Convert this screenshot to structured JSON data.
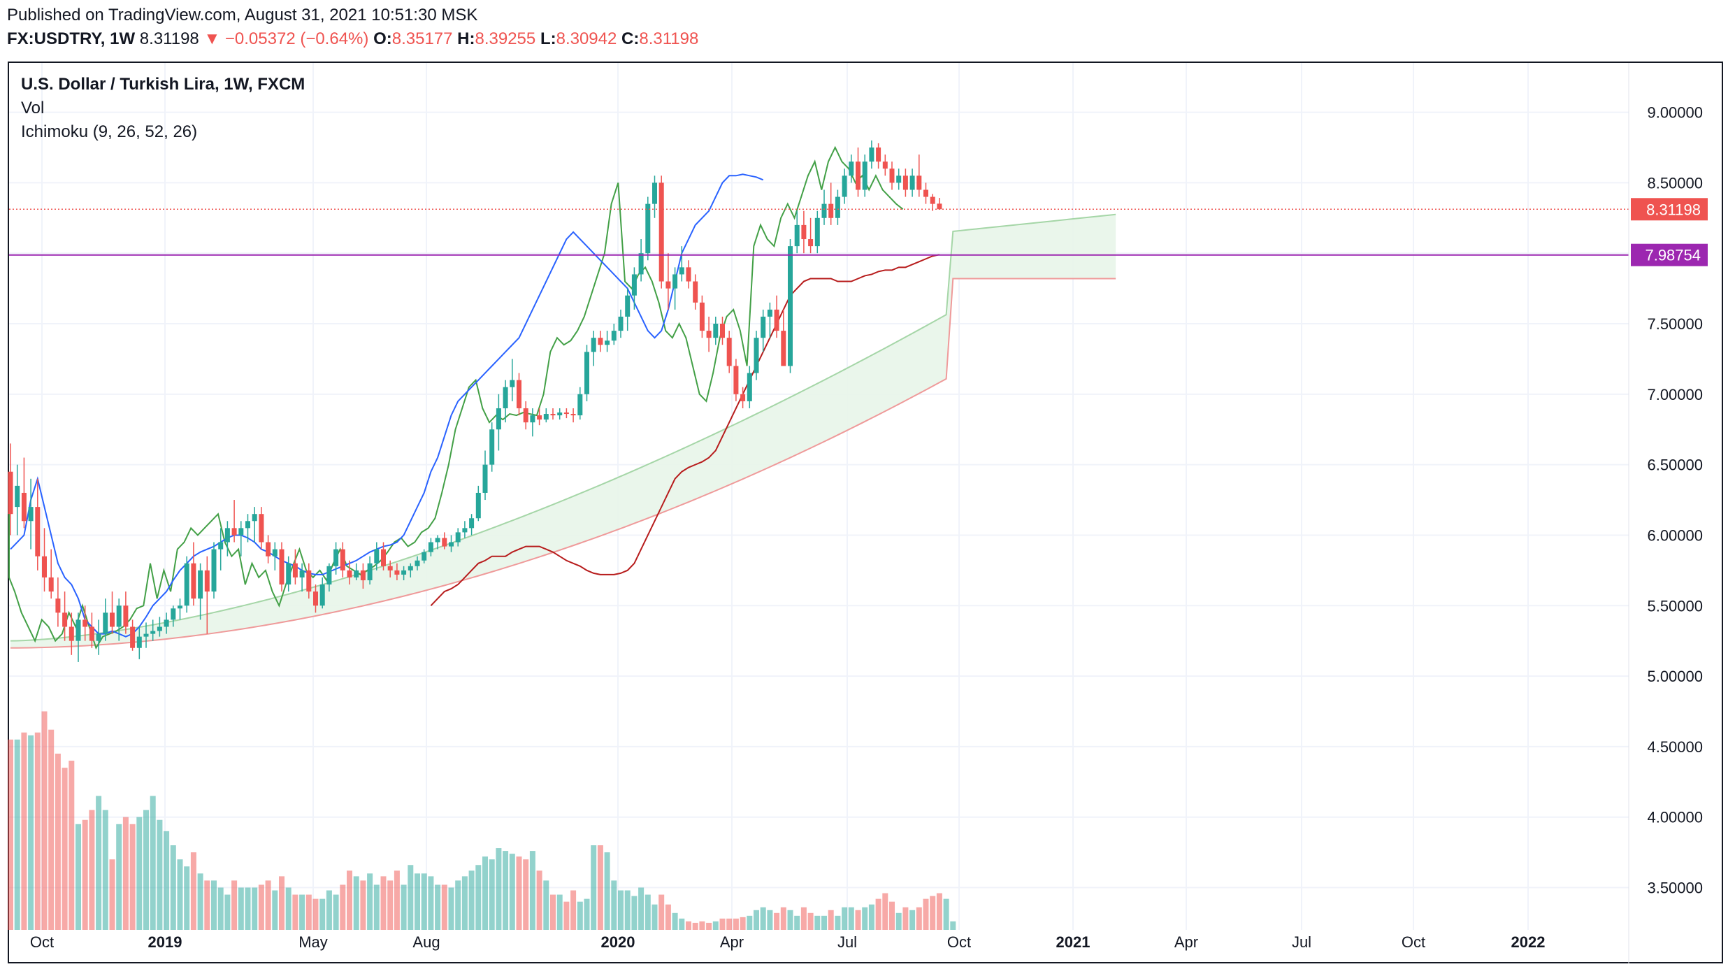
{
  "header": {
    "published": "Published on TradingView.com, August 31, 2021 10:51:30 MSK",
    "symbol": "FX:USDTRY, 1W",
    "last": "8.31198",
    "down_arrow": "▼",
    "change": "−0.05372 (−0.64%)",
    "o_label": "O:",
    "o_val": "8.35177",
    "h_label": "H:",
    "h_val": "8.39255",
    "l_label": "L:",
    "l_val": "8.30942",
    "c_label": "C:",
    "c_val": "8.31198"
  },
  "legend": {
    "title": "U.S. Dollar / Turkish Lira, 1W, FXCM",
    "vol": "Vol",
    "ichimoku": "Ichimoku (9, 26, 52, 26)"
  },
  "colors": {
    "up": "#26a69a",
    "down": "#ef5350",
    "tenkan": "#2962ff",
    "kijun": "#b71c1c",
    "chikou": "#43a047",
    "span_a": "#a5d6a7",
    "span_b": "#ef9a9a",
    "cloud_bull": "#e8f5e9",
    "cloud_bear": "#fce4e4",
    "hline": "#9c27b0",
    "price_label": "#ef5350",
    "level_label": "#9c27b0"
  },
  "chart_data": {
    "type": "candlestick",
    "title": "U.S. Dollar / Turkish Lira, 1W, FXCM",
    "x_labels": [
      "Oct",
      "2019",
      "May",
      "Aug",
      "2020",
      "Apr",
      "Jul",
      "Oct",
      "2021",
      "Apr",
      "Jul",
      "Oct",
      "2022"
    ],
    "y_ticks": [
      "9.00000",
      "8.50000",
      "8.00000",
      "7.50000",
      "7.00000",
      "6.50000",
      "6.00000",
      "5.50000",
      "5.00000",
      "4.50000",
      "4.00000",
      "3.50000"
    ],
    "ylim": [
      3.2,
      9.35
    ],
    "last_price": "8.31198",
    "horizontal_level": "7.98754",
    "grid": true,
    "candles_ohlc": [
      [
        6.45,
        6.65,
        6.0,
        6.15
      ],
      [
        6.2,
        6.5,
        6.0,
        6.35
      ],
      [
        6.3,
        6.55,
        6.05,
        6.1
      ],
      [
        6.1,
        6.4,
        5.9,
        6.2
      ],
      [
        6.2,
        6.4,
        5.75,
        5.85
      ],
      [
        5.85,
        6.05,
        5.6,
        5.7
      ],
      [
        5.7,
        5.9,
        5.55,
        5.6
      ],
      [
        5.55,
        5.7,
        5.35,
        5.45
      ],
      [
        5.45,
        5.6,
        5.25,
        5.35
      ],
      [
        5.35,
        5.45,
        5.15,
        5.25
      ],
      [
        5.25,
        5.45,
        5.1,
        5.4
      ],
      [
        5.4,
        5.5,
        5.25,
        5.35
      ],
      [
        5.35,
        5.45,
        5.2,
        5.25
      ],
      [
        5.25,
        5.4,
        5.15,
        5.3
      ],
      [
        5.3,
        5.55,
        5.25,
        5.45
      ],
      [
        5.45,
        5.6,
        5.3,
        5.35
      ],
      [
        5.35,
        5.55,
        5.25,
        5.5
      ],
      [
        5.5,
        5.6,
        5.3,
        5.35
      ],
      [
        5.35,
        5.4,
        5.18,
        5.2
      ],
      [
        5.2,
        5.35,
        5.12,
        5.28
      ],
      [
        5.28,
        5.38,
        5.2,
        5.3
      ],
      [
        5.3,
        5.4,
        5.25,
        5.32
      ],
      [
        5.32,
        5.42,
        5.28,
        5.35
      ],
      [
        5.35,
        5.45,
        5.3,
        5.4
      ],
      [
        5.4,
        5.5,
        5.35,
        5.48
      ],
      [
        5.48,
        5.55,
        5.4,
        5.5
      ],
      [
        5.5,
        5.85,
        5.45,
        5.8
      ],
      [
        5.8,
        5.95,
        5.5,
        5.55
      ],
      [
        5.55,
        5.8,
        5.4,
        5.75
      ],
      [
        5.75,
        5.85,
        5.3,
        5.6
      ],
      [
        5.6,
        5.95,
        5.55,
        5.9
      ],
      [
        5.9,
        6.05,
        5.75,
        5.95
      ],
      [
        5.95,
        6.1,
        5.85,
        6.05
      ],
      [
        6.05,
        6.25,
        5.95,
        6.0
      ],
      [
        6.0,
        6.1,
        5.85,
        6.05
      ],
      [
        6.05,
        6.15,
        5.95,
        6.1
      ],
      [
        6.1,
        6.2,
        5.95,
        6.15
      ],
      [
        6.15,
        6.2,
        5.9,
        5.95
      ],
      [
        5.95,
        6.0,
        5.8,
        5.85
      ],
      [
        5.85,
        5.95,
        5.75,
        5.9
      ],
      [
        5.9,
        5.95,
        5.6,
        5.65
      ],
      [
        5.65,
        5.85,
        5.6,
        5.8
      ],
      [
        5.8,
        5.9,
        5.65,
        5.7
      ],
      [
        5.7,
        5.8,
        5.6,
        5.75
      ],
      [
        5.75,
        5.8,
        5.55,
        5.6
      ],
      [
        5.6,
        5.65,
        5.45,
        5.5
      ],
      [
        5.5,
        5.7,
        5.48,
        5.65
      ],
      [
        5.65,
        5.8,
        5.6,
        5.78
      ],
      [
        5.78,
        5.95,
        5.72,
        5.9
      ],
      [
        5.9,
        5.95,
        5.7,
        5.75
      ],
      [
        5.75,
        5.82,
        5.65,
        5.7
      ],
      [
        5.7,
        5.8,
        5.68,
        5.75
      ],
      [
        5.75,
        5.8,
        5.62,
        5.68
      ],
      [
        5.68,
        5.85,
        5.65,
        5.8
      ],
      [
        5.8,
        5.95,
        5.75,
        5.9
      ],
      [
        5.9,
        5.95,
        5.75,
        5.78
      ],
      [
        5.78,
        5.82,
        5.7,
        5.75
      ],
      [
        5.75,
        5.8,
        5.68,
        5.72
      ],
      [
        5.72,
        5.78,
        5.68,
        5.75
      ],
      [
        5.75,
        5.8,
        5.7,
        5.78
      ],
      [
        5.78,
        5.85,
        5.75,
        5.82
      ],
      [
        5.82,
        5.9,
        5.8,
        5.88
      ],
      [
        5.88,
        5.98,
        5.85,
        5.95
      ],
      [
        5.95,
        6.0,
        5.9,
        5.98
      ],
      [
        5.98,
        6.02,
        5.9,
        5.92
      ],
      [
        5.92,
        6.0,
        5.88,
        5.95
      ],
      [
        5.95,
        6.05,
        5.92,
        6.02
      ],
      [
        6.02,
        6.1,
        5.98,
        6.05
      ],
      [
        6.05,
        6.15,
        6.0,
        6.12
      ],
      [
        6.12,
        6.35,
        6.1,
        6.3
      ],
      [
        6.3,
        6.6,
        6.25,
        6.5
      ],
      [
        6.5,
        6.8,
        6.45,
        6.75
      ],
      [
        6.75,
        7.0,
        6.6,
        6.9
      ],
      [
        6.9,
        7.1,
        6.8,
        7.05
      ],
      [
        7.05,
        7.25,
        6.95,
        7.1
      ],
      [
        7.1,
        7.15,
        6.85,
        6.9
      ],
      [
        6.9,
        6.95,
        6.75,
        6.8
      ],
      [
        6.8,
        6.9,
        6.7,
        6.85
      ],
      [
        6.85,
        6.9,
        6.78,
        6.82
      ],
      [
        6.82,
        6.9,
        6.8,
        6.86
      ],
      [
        6.86,
        6.9,
        6.82,
        6.85
      ],
      [
        6.85,
        6.9,
        6.82,
        6.87
      ],
      [
        6.87,
        6.9,
        6.83,
        6.86
      ],
      [
        6.86,
        6.9,
        6.8,
        6.85
      ],
      [
        6.85,
        7.05,
        6.82,
        7.0
      ],
      [
        7.0,
        7.35,
        6.95,
        7.3
      ],
      [
        7.3,
        7.45,
        7.2,
        7.4
      ],
      [
        7.4,
        7.45,
        7.3,
        7.35
      ],
      [
        7.35,
        7.45,
        7.3,
        7.38
      ],
      [
        7.38,
        7.5,
        7.35,
        7.45
      ],
      [
        7.45,
        7.6,
        7.4,
        7.55
      ],
      [
        7.55,
        7.75,
        7.45,
        7.7
      ],
      [
        7.7,
        7.9,
        7.6,
        7.85
      ],
      [
        7.85,
        8.1,
        7.8,
        8.0
      ],
      [
        8.0,
        8.4,
        7.95,
        8.35
      ],
      [
        8.35,
        8.55,
        8.25,
        8.5
      ],
      [
        8.5,
        8.55,
        7.75,
        7.8
      ],
      [
        7.8,
        8.0,
        7.6,
        7.75
      ],
      [
        7.75,
        7.9,
        7.6,
        7.85
      ],
      [
        7.85,
        8.05,
        7.8,
        7.9
      ],
      [
        7.9,
        7.95,
        7.75,
        7.8
      ],
      [
        7.8,
        7.85,
        7.6,
        7.65
      ],
      [
        7.65,
        7.7,
        7.4,
        7.45
      ],
      [
        7.45,
        7.55,
        7.3,
        7.4
      ],
      [
        7.4,
        7.55,
        7.35,
        7.5
      ],
      [
        7.5,
        7.55,
        7.35,
        7.4
      ],
      [
        7.4,
        7.45,
        7.15,
        7.2
      ],
      [
        7.2,
        7.25,
        6.95,
        7.0
      ],
      [
        7.0,
        7.05,
        6.9,
        6.95
      ],
      [
        6.95,
        7.2,
        6.9,
        7.15
      ],
      [
        7.15,
        7.45,
        7.1,
        7.4
      ],
      [
        7.4,
        7.6,
        7.3,
        7.55
      ],
      [
        7.55,
        7.65,
        7.4,
        7.6
      ],
      [
        7.6,
        7.7,
        7.4,
        7.45
      ],
      [
        7.45,
        7.6,
        7.2,
        7.2
      ],
      [
        7.2,
        8.1,
        7.15,
        8.05
      ],
      [
        8.05,
        8.3,
        8.0,
        8.2
      ],
      [
        8.2,
        8.3,
        8.0,
        8.1
      ],
      [
        8.1,
        8.25,
        8.0,
        8.05
      ],
      [
        8.05,
        8.3,
        8.0,
        8.25
      ],
      [
        8.25,
        8.45,
        8.2,
        8.35
      ],
      [
        8.35,
        8.5,
        8.2,
        8.25
      ],
      [
        8.25,
        8.45,
        8.2,
        8.4
      ],
      [
        8.4,
        8.6,
        8.35,
        8.55
      ],
      [
        8.55,
        8.7,
        8.5,
        8.65
      ],
      [
        8.65,
        8.75,
        8.4,
        8.45
      ],
      [
        8.45,
        8.7,
        8.4,
        8.65
      ],
      [
        8.65,
        8.8,
        8.6,
        8.75
      ],
      [
        8.75,
        8.78,
        8.6,
        8.65
      ],
      [
        8.65,
        8.7,
        8.55,
        8.6
      ],
      [
        8.6,
        8.65,
        8.45,
        8.5
      ],
      [
        8.5,
        8.6,
        8.45,
        8.55
      ],
      [
        8.55,
        8.6,
        8.4,
        8.45
      ],
      [
        8.45,
        8.6,
        8.4,
        8.55
      ],
      [
        8.55,
        8.7,
        8.4,
        8.45
      ],
      [
        8.45,
        8.5,
        8.35,
        8.4
      ],
      [
        8.4,
        8.42,
        8.3,
        8.35
      ],
      [
        8.35177,
        8.39255,
        8.30942,
        8.31198
      ]
    ],
    "volume": [
      4.55,
      4.55,
      4.6,
      4.58,
      4.6,
      4.75,
      4.62,
      4.45,
      4.35,
      4.4,
      3.95,
      3.98,
      4.05,
      4.15,
      4.05,
      3.7,
      3.95,
      4.0,
      3.95,
      4.0,
      4.05,
      4.15,
      3.98,
      3.9,
      3.8,
      3.7,
      3.65,
      3.75,
      3.6,
      3.55,
      3.55,
      3.5,
      3.45,
      3.55,
      3.5,
      3.5,
      3.5,
      3.52,
      3.55,
      3.48,
      3.58,
      3.5,
      3.45,
      3.45,
      3.45,
      3.42,
      3.42,
      3.48,
      3.45,
      3.52,
      3.62,
      3.58,
      3.55,
      3.6,
      3.52,
      3.58,
      3.55,
      3.62,
      3.52,
      3.66,
      3.6,
      3.6,
      3.58,
      3.52,
      3.52,
      3.5,
      3.55,
      3.58,
      3.62,
      3.66,
      3.72,
      3.7,
      3.78,
      3.76,
      3.74,
      3.72,
      3.7,
      3.76,
      3.62,
      3.55,
      3.45,
      3.45,
      3.4,
      3.48,
      3.4,
      3.42,
      3.8,
      3.8,
      3.75,
      3.55,
      3.48,
      3.48,
      3.44,
      3.5,
      3.45,
      3.38,
      3.45,
      3.38,
      3.32,
      3.28,
      3.26,
      3.25,
      3.26,
      3.25,
      3.26,
      3.28,
      3.28,
      3.28,
      3.29,
      3.3,
      3.34,
      3.36,
      3.34,
      3.32,
      3.36,
      3.34,
      3.3,
      3.36,
      3.32,
      3.3,
      3.3,
      3.34,
      3.3,
      3.36,
      3.36,
      3.34,
      3.36,
      3.38,
      3.42,
      3.46,
      3.4,
      3.32,
      3.36,
      3.34,
      3.36,
      3.42,
      3.44,
      3.46,
      3.42,
      3.26
    ],
    "tenkan": [
      5.9,
      5.95,
      6.0,
      6.25,
      6.4,
      6.2,
      6.0,
      5.8,
      5.7,
      5.65,
      5.55,
      5.4,
      5.35,
      5.3,
      5.3,
      5.32,
      5.3,
      5.28,
      5.3,
      5.35,
      5.42,
      5.5,
      5.55,
      5.6,
      5.68,
      5.75,
      5.8,
      5.85,
      5.88,
      5.9,
      5.92,
      5.95,
      5.98,
      6.0,
      6.0,
      5.98,
      5.95,
      5.9,
      5.88,
      5.85,
      5.82,
      5.8,
      5.78,
      5.75,
      5.73,
      5.72,
      5.72,
      5.74,
      5.76,
      5.78,
      5.8,
      5.82,
      5.85,
      5.88,
      5.9,
      5.92,
      5.93,
      5.95,
      6.0,
      6.1,
      6.2,
      6.3,
      6.45,
      6.55,
      6.7,
      6.85,
      6.95,
      7.0,
      7.05,
      7.1,
      7.15,
      7.2,
      7.25,
      7.3,
      7.35,
      7.4,
      7.5,
      7.6,
      7.7,
      7.8,
      7.9,
      8.0,
      8.1,
      8.15,
      8.1,
      8.05,
      8.0,
      7.95,
      7.9,
      7.85,
      7.8,
      7.75,
      7.65,
      7.55,
      7.45,
      7.4,
      7.45,
      7.6,
      7.8,
      8.0,
      8.1,
      8.2,
      8.25,
      8.3,
      8.4,
      8.5,
      8.55,
      8.55,
      8.56,
      8.55,
      8.54,
      8.52
    ],
    "kijun": [
      5.5,
      5.55,
      5.6,
      5.62,
      5.65,
      5.7,
      5.75,
      5.8,
      5.82,
      5.85,
      5.85,
      5.85,
      5.88,
      5.9,
      5.92,
      5.92,
      5.92,
      5.9,
      5.88,
      5.85,
      5.82,
      5.8,
      5.78,
      5.75,
      5.73,
      5.72,
      5.72,
      5.72,
      5.73,
      5.75,
      5.8,
      5.9,
      6.0,
      6.1,
      6.2,
      6.3,
      6.4,
      6.45,
      6.48,
      6.5,
      6.52,
      6.55,
      6.6,
      6.7,
      6.8,
      6.9,
      7.0,
      7.1,
      7.2,
      7.3,
      7.4,
      7.5,
      7.6,
      7.7,
      7.75,
      7.8,
      7.82,
      7.82,
      7.82,
      7.82,
      7.8,
      7.8,
      7.8,
      7.82,
      7.84,
      7.85,
      7.87,
      7.88,
      7.88,
      7.9,
      7.9,
      7.92,
      7.94,
      7.96,
      7.98,
      7.99
    ]
  }
}
